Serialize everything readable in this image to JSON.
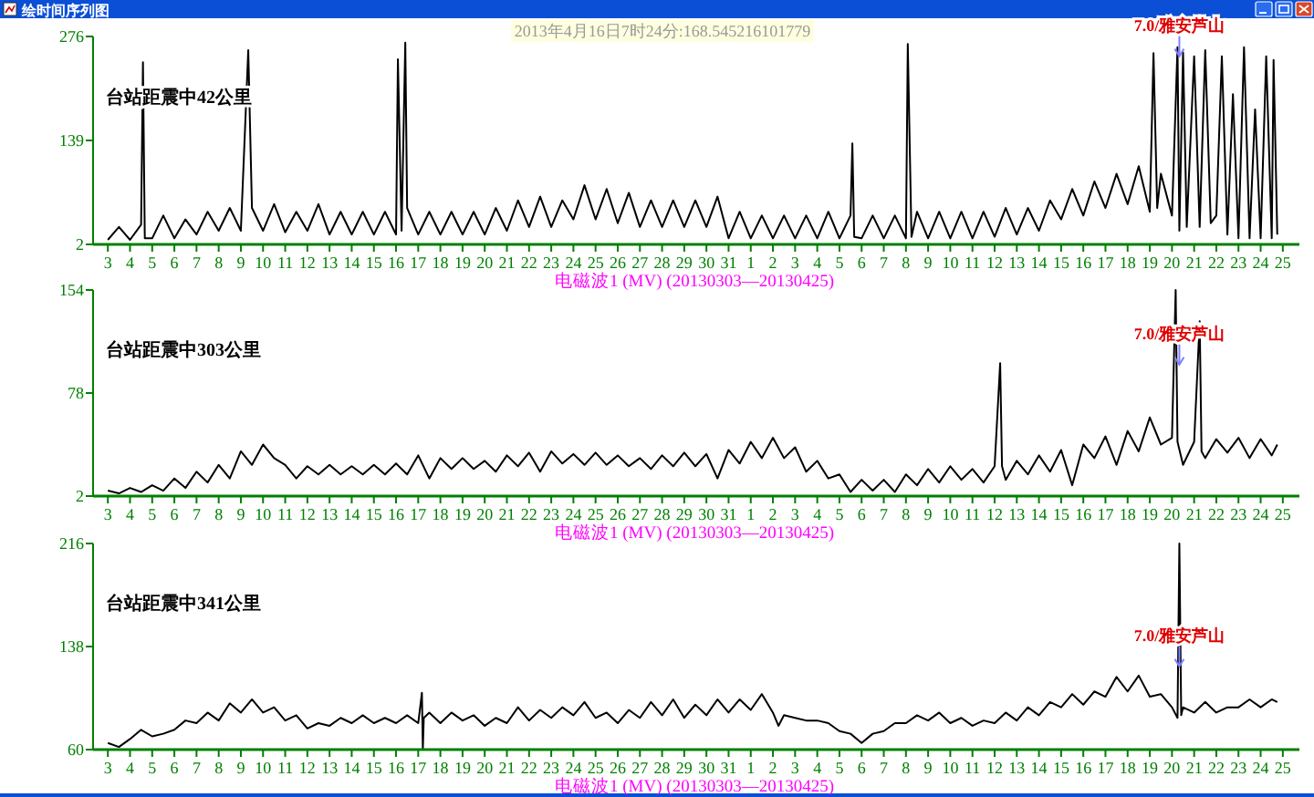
{
  "chart_data": [
    {
      "type": "line",
      "title": "绘时间序列图",
      "subtitle": "2013年4月16日7时24分:168.545216101779",
      "xlabel": "电磁波1 (MV) (20130303—20130425)",
      "annotations": [
        "台站距震中42公里",
        {
          "text": "7.0/雅安芦山",
          "x": "2013-04-20T08:00",
          "y": 250
        }
      ],
      "xlim": [
        "2013-03-02T08:00",
        "2013-04-25T14:00"
      ],
      "ylim": [
        2,
        276
      ],
      "yticks": [
        2,
        139,
        276
      ],
      "xticks": [
        {
          "value": "2013-03-03",
          "label": "3"
        },
        {
          "value": "2013-03-04",
          "label": "4"
        },
        {
          "value": "2013-03-05",
          "label": "5"
        },
        {
          "value": "2013-03-06",
          "label": "6"
        },
        {
          "value": "2013-03-07",
          "label": "7"
        },
        {
          "value": "2013-03-08",
          "label": "8"
        },
        {
          "value": "2013-03-09",
          "label": "9"
        },
        {
          "value": "2013-03-10",
          "label": "10"
        },
        {
          "value": "2013-03-11",
          "label": "11"
        },
        {
          "value": "2013-03-12",
          "label": "12"
        },
        {
          "value": "2013-03-13",
          "label": "13"
        },
        {
          "value": "2013-03-14",
          "label": "14"
        },
        {
          "value": "2013-03-15",
          "label": "15"
        },
        {
          "value": "2013-03-16",
          "label": "16"
        },
        {
          "value": "2013-03-17",
          "label": "17"
        },
        {
          "value": "2013-03-18",
          "label": "18"
        },
        {
          "value": "2013-03-19",
          "label": "19"
        },
        {
          "value": "2013-03-20",
          "label": "20"
        },
        {
          "value": "2013-03-21",
          "label": "21"
        },
        {
          "value": "2013-03-22",
          "label": "22"
        },
        {
          "value": "2013-03-23",
          "label": "23"
        },
        {
          "value": "2013-03-24",
          "label": "24"
        },
        {
          "value": "2013-03-25",
          "label": "25"
        },
        {
          "value": "2013-03-26",
          "label": "26"
        },
        {
          "value": "2013-03-27",
          "label": "27"
        },
        {
          "value": "2013-03-28",
          "label": "28"
        },
        {
          "value": "2013-03-29",
          "label": "29"
        },
        {
          "value": "2013-03-30",
          "label": "30"
        },
        {
          "value": "2013-03-31",
          "label": "31"
        },
        {
          "value": "2013-04-01",
          "label": "1"
        },
        {
          "value": "2013-04-02",
          "label": "2"
        },
        {
          "value": "2013-04-03",
          "label": "3"
        },
        {
          "value": "2013-04-04",
          "label": "4"
        },
        {
          "value": "2013-04-05",
          "label": "5"
        },
        {
          "value": "2013-04-06",
          "label": "6"
        },
        {
          "value": "2013-04-07",
          "label": "7"
        },
        {
          "value": "2013-04-08",
          "label": "8"
        },
        {
          "value": "2013-04-09",
          "label": "9"
        },
        {
          "value": "2013-04-10",
          "label": "10"
        },
        {
          "value": "2013-04-11",
          "label": "11"
        },
        {
          "value": "2013-04-12",
          "label": "12"
        },
        {
          "value": "2013-04-13",
          "label": "13"
        },
        {
          "value": "2013-04-14",
          "label": "14"
        },
        {
          "value": "2013-04-15",
          "label": "15"
        },
        {
          "value": "2013-04-16",
          "label": "16"
        },
        {
          "value": "2013-04-17",
          "label": "17"
        },
        {
          "value": "2013-04-18",
          "label": "18"
        },
        {
          "value": "2013-04-19",
          "label": "19"
        },
        {
          "value": "2013-04-20",
          "label": "20"
        },
        {
          "value": "2013-04-21",
          "label": "21"
        },
        {
          "value": "2013-04-22",
          "label": "22"
        },
        {
          "value": "2013-04-23",
          "label": "23"
        },
        {
          "value": "2013-04-24",
          "label": "24"
        },
        {
          "value": "2013-04-25",
          "label": "25"
        }
      ],
      "x": [
        "2013-03-03T00:00",
        "2013-03-03T12:00",
        "2013-03-04T00:00",
        "2013-03-04T12:00",
        "2013-03-04T14:00",
        "2013-03-04T16:00",
        "2013-03-05T00:00",
        "2013-03-05T12:00",
        "2013-03-06T00:00",
        "2013-03-06T12:00",
        "2013-03-07T00:00",
        "2013-03-07T12:00",
        "2013-03-08T00:00",
        "2013-03-08T12:00",
        "2013-03-09T00:00",
        "2013-03-09T08:00",
        "2013-03-09T12:00",
        "2013-03-10T00:00",
        "2013-03-10T12:00",
        "2013-03-11T00:00",
        "2013-03-11T12:00",
        "2013-03-12T00:00",
        "2013-03-12T12:00",
        "2013-03-13T00:00",
        "2013-03-13T12:00",
        "2013-03-14T00:00",
        "2013-03-14T12:00",
        "2013-03-15T00:00",
        "2013-03-15T12:00",
        "2013-03-16T00:00",
        "2013-03-16T02:00",
        "2013-03-16T06:00",
        "2013-03-16T10:00",
        "2013-03-16T12:00",
        "2013-03-17T00:00",
        "2013-03-17T12:00",
        "2013-03-18T00:00",
        "2013-03-18T12:00",
        "2013-03-19T00:00",
        "2013-03-19T12:00",
        "2013-03-20T00:00",
        "2013-03-20T12:00",
        "2013-03-21T00:00",
        "2013-03-21T12:00",
        "2013-03-22T00:00",
        "2013-03-22T12:00",
        "2013-03-23T00:00",
        "2013-03-23T12:00",
        "2013-03-24T00:00",
        "2013-03-24T12:00",
        "2013-03-25T00:00",
        "2013-03-25T12:00",
        "2013-03-26T00:00",
        "2013-03-26T12:00",
        "2013-03-27T00:00",
        "2013-03-27T12:00",
        "2013-03-28T00:00",
        "2013-03-28T12:00",
        "2013-03-29T00:00",
        "2013-03-29T12:00",
        "2013-03-30T00:00",
        "2013-03-30T12:00",
        "2013-03-31T00:00",
        "2013-03-31T12:00",
        "2013-04-01T00:00",
        "2013-04-01T12:00",
        "2013-04-02T00:00",
        "2013-04-02T12:00",
        "2013-04-03T00:00",
        "2013-04-03T12:00",
        "2013-04-04T00:00",
        "2013-04-04T12:00",
        "2013-04-05T00:00",
        "2013-04-05T12:00",
        "2013-04-05T14:00",
        "2013-04-05T16:00",
        "2013-04-06T00:00",
        "2013-04-06T12:00",
        "2013-04-07T00:00",
        "2013-04-07T12:00",
        "2013-04-08T00:00",
        "2013-04-08T02:00",
        "2013-04-08T06:00",
        "2013-04-08T12:00",
        "2013-04-09T00:00",
        "2013-04-09T12:00",
        "2013-04-10T00:00",
        "2013-04-10T12:00",
        "2013-04-11T00:00",
        "2013-04-11T12:00",
        "2013-04-12T00:00",
        "2013-04-12T12:00",
        "2013-04-13T00:00",
        "2013-04-13T12:00",
        "2013-04-14T00:00",
        "2013-04-14T12:00",
        "2013-04-15T00:00",
        "2013-04-15T12:00",
        "2013-04-16T00:00",
        "2013-04-16T12:00",
        "2013-04-17T00:00",
        "2013-04-17T12:00",
        "2013-04-18T00:00",
        "2013-04-18T12:00",
        "2013-04-19T00:00",
        "2013-04-19T04:00",
        "2013-04-19T08:00",
        "2013-04-19T12:00",
        "2013-04-20T00:00",
        "2013-04-20T06:00",
        "2013-04-20T08:00",
        "2013-04-20T12:00",
        "2013-04-20T16:00",
        "2013-04-21T00:00",
        "2013-04-21T06:00",
        "2013-04-21T12:00",
        "2013-04-21T18:00",
        "2013-04-22T00:00",
        "2013-04-22T06:00",
        "2013-04-22T12:00",
        "2013-04-22T18:00",
        "2013-04-23T00:00",
        "2013-04-23T06:00",
        "2013-04-23T12:00",
        "2013-04-23T18:00",
        "2013-04-24T00:00",
        "2013-04-24T06:00",
        "2013-04-24T12:00",
        "2013-04-24T14:00",
        "2013-04-24T18:00"
      ],
      "series": [
        {
          "color": "#000000",
          "values": [
            8,
            25,
            8,
            28,
            242,
            10,
            10,
            40,
            10,
            35,
            15,
            45,
            20,
            50,
            20,
            258,
            50,
            20,
            55,
            18,
            45,
            20,
            55,
            15,
            45,
            15,
            45,
            15,
            45,
            15,
            246,
            20,
            268,
            50,
            15,
            45,
            15,
            45,
            15,
            45,
            15,
            50,
            20,
            60,
            25,
            65,
            25,
            60,
            35,
            80,
            35,
            75,
            30,
            70,
            25,
            60,
            25,
            60,
            25,
            60,
            25,
            65,
            10,
            45,
            10,
            40,
            10,
            40,
            10,
            40,
            10,
            45,
            10,
            40,
            135,
            12,
            10,
            40,
            10,
            40,
            10,
            266,
            12,
            45,
            10,
            45,
            10,
            45,
            10,
            45,
            12,
            50,
            15,
            50,
            20,
            60,
            35,
            75,
            40,
            85,
            50,
            95,
            55,
            105,
            45,
            254,
            50,
            95,
            40,
            262,
            20,
            255,
            25,
            250,
            25,
            258,
            30,
            40,
            250,
            15,
            200,
            10,
            262,
            10,
            180,
            10,
            250,
            10,
            245,
            15
          ]
        }
      ]
    },
    {
      "type": "line",
      "xlabel": "电磁波1 (MV) (20130303—20130425)",
      "annotations": [
        "台站距震中303公里",
        {
          "text": "7.0/雅安芦山",
          "x": "2013-04-20T08:00",
          "y": 99
        }
      ],
      "xlim": [
        "2013-03-02T08:00",
        "2013-04-25T14:00"
      ],
      "ylim": [
        2,
        154
      ],
      "yticks": [
        2,
        78,
        154
      ],
      "xticks": [
        {
          "value": "2013-03-03",
          "label": "3"
        },
        {
          "value": "2013-03-04",
          "label": "4"
        },
        {
          "value": "2013-03-05",
          "label": "5"
        },
        {
          "value": "2013-03-06",
          "label": "6"
        },
        {
          "value": "2013-03-07",
          "label": "7"
        },
        {
          "value": "2013-03-08",
          "label": "8"
        },
        {
          "value": "2013-03-09",
          "label": "9"
        },
        {
          "value": "2013-03-10",
          "label": "10"
        },
        {
          "value": "2013-03-11",
          "label": "11"
        },
        {
          "value": "2013-03-12",
          "label": "12"
        },
        {
          "value": "2013-03-13",
          "label": "13"
        },
        {
          "value": "2013-03-14",
          "label": "14"
        },
        {
          "value": "2013-03-15",
          "label": "15"
        },
        {
          "value": "2013-03-16",
          "label": "16"
        },
        {
          "value": "2013-03-17",
          "label": "17"
        },
        {
          "value": "2013-03-18",
          "label": "18"
        },
        {
          "value": "2013-03-19",
          "label": "19"
        },
        {
          "value": "2013-03-20",
          "label": "20"
        },
        {
          "value": "2013-03-21",
          "label": "21"
        },
        {
          "value": "2013-03-22",
          "label": "22"
        },
        {
          "value": "2013-03-23",
          "label": "23"
        },
        {
          "value": "2013-03-24",
          "label": "24"
        },
        {
          "value": "2013-03-25",
          "label": "25"
        },
        {
          "value": "2013-03-26",
          "label": "26"
        },
        {
          "value": "2013-03-27",
          "label": "27"
        },
        {
          "value": "2013-03-28",
          "label": "28"
        },
        {
          "value": "2013-03-29",
          "label": "29"
        },
        {
          "value": "2013-03-30",
          "label": "30"
        },
        {
          "value": "2013-03-31",
          "label": "31"
        },
        {
          "value": "2013-04-01",
          "label": "1"
        },
        {
          "value": "2013-04-02",
          "label": "2"
        },
        {
          "value": "2013-04-03",
          "label": "3"
        },
        {
          "value": "2013-04-04",
          "label": "4"
        },
        {
          "value": "2013-04-05",
          "label": "5"
        },
        {
          "value": "2013-04-06",
          "label": "6"
        },
        {
          "value": "2013-04-07",
          "label": "7"
        },
        {
          "value": "2013-04-08",
          "label": "8"
        },
        {
          "value": "2013-04-09",
          "label": "9"
        },
        {
          "value": "2013-04-10",
          "label": "10"
        },
        {
          "value": "2013-04-11",
          "label": "11"
        },
        {
          "value": "2013-04-12",
          "label": "12"
        },
        {
          "value": "2013-04-13",
          "label": "13"
        },
        {
          "value": "2013-04-14",
          "label": "14"
        },
        {
          "value": "2013-04-15",
          "label": "15"
        },
        {
          "value": "2013-04-16",
          "label": "16"
        },
        {
          "value": "2013-04-17",
          "label": "17"
        },
        {
          "value": "2013-04-18",
          "label": "18"
        },
        {
          "value": "2013-04-19",
          "label": "19"
        },
        {
          "value": "2013-04-20",
          "label": "20"
        },
        {
          "value": "2013-04-21",
          "label": "21"
        },
        {
          "value": "2013-04-22",
          "label": "22"
        },
        {
          "value": "2013-04-23",
          "label": "23"
        },
        {
          "value": "2013-04-24",
          "label": "24"
        },
        {
          "value": "2013-04-25",
          "label": "25"
        }
      ],
      "x": [
        "2013-03-03T00:00",
        "2013-03-03T12:00",
        "2013-03-04T00:00",
        "2013-03-04T12:00",
        "2013-03-05T00:00",
        "2013-03-05T12:00",
        "2013-03-06T00:00",
        "2013-03-06T12:00",
        "2013-03-07T00:00",
        "2013-03-07T12:00",
        "2013-03-08T00:00",
        "2013-03-08T12:00",
        "2013-03-09T00:00",
        "2013-03-09T12:00",
        "2013-03-10T00:00",
        "2013-03-10T12:00",
        "2013-03-11T00:00",
        "2013-03-11T12:00",
        "2013-03-12T00:00",
        "2013-03-12T12:00",
        "2013-03-13T00:00",
        "2013-03-13T12:00",
        "2013-03-14T00:00",
        "2013-03-14T12:00",
        "2013-03-15T00:00",
        "2013-03-15T12:00",
        "2013-03-16T00:00",
        "2013-03-16T12:00",
        "2013-03-17T00:00",
        "2013-03-17T12:00",
        "2013-03-18T00:00",
        "2013-03-18T12:00",
        "2013-03-19T00:00",
        "2013-03-19T12:00",
        "2013-03-20T00:00",
        "2013-03-20T12:00",
        "2013-03-21T00:00",
        "2013-03-21T12:00",
        "2013-03-22T00:00",
        "2013-03-22T12:00",
        "2013-03-23T00:00",
        "2013-03-23T12:00",
        "2013-03-24T00:00",
        "2013-03-24T12:00",
        "2013-03-25T00:00",
        "2013-03-25T12:00",
        "2013-03-26T00:00",
        "2013-03-26T12:00",
        "2013-03-27T00:00",
        "2013-03-27T12:00",
        "2013-03-28T00:00",
        "2013-03-28T12:00",
        "2013-03-29T00:00",
        "2013-03-29T12:00",
        "2013-03-30T00:00",
        "2013-03-30T12:00",
        "2013-03-31T00:00",
        "2013-03-31T12:00",
        "2013-04-01T00:00",
        "2013-04-01T12:00",
        "2013-04-02T00:00",
        "2013-04-02T12:00",
        "2013-04-03T00:00",
        "2013-04-03T12:00",
        "2013-04-04T00:00",
        "2013-04-04T12:00",
        "2013-04-05T00:00",
        "2013-04-05T12:00",
        "2013-04-06T00:00",
        "2013-04-06T12:00",
        "2013-04-07T00:00",
        "2013-04-07T12:00",
        "2013-04-08T00:00",
        "2013-04-08T12:00",
        "2013-04-09T00:00",
        "2013-04-09T12:00",
        "2013-04-10T00:00",
        "2013-04-10T12:00",
        "2013-04-11T00:00",
        "2013-04-11T12:00",
        "2013-04-12T00:00",
        "2013-04-12T06:00",
        "2013-04-12T08:00",
        "2013-04-12T12:00",
        "2013-04-13T00:00",
        "2013-04-13T12:00",
        "2013-04-14T00:00",
        "2013-04-14T12:00",
        "2013-04-15T00:00",
        "2013-04-15T12:00",
        "2013-04-16T00:00",
        "2013-04-16T12:00",
        "2013-04-17T00:00",
        "2013-04-17T12:00",
        "2013-04-18T00:00",
        "2013-04-18T12:00",
        "2013-04-19T00:00",
        "2013-04-19T12:00",
        "2013-04-20T00:00",
        "2013-04-20T04:00",
        "2013-04-20T06:00",
        "2013-04-20T12:00",
        "2013-04-21T00:00",
        "2013-04-21T06:00",
        "2013-04-21T08:00",
        "2013-04-21T12:00",
        "2013-04-22T00:00",
        "2013-04-22T12:00",
        "2013-04-23T00:00",
        "2013-04-23T12:00",
        "2013-04-24T00:00",
        "2013-04-24T12:00",
        "2013-04-24T18:00"
      ],
      "series": [
        {
          "color": "#000000",
          "values": [
            6,
            4,
            8,
            5,
            10,
            6,
            15,
            8,
            20,
            12,
            25,
            15,
            35,
            25,
            40,
            30,
            25,
            15,
            24,
            18,
            25,
            18,
            24,
            18,
            25,
            18,
            26,
            18,
            32,
            15,
            30,
            22,
            30,
            22,
            28,
            20,
            32,
            24,
            34,
            20,
            35,
            26,
            33,
            25,
            34,
            25,
            32,
            24,
            30,
            22,
            32,
            24,
            34,
            24,
            33,
            15,
            36,
            26,
            42,
            30,
            45,
            30,
            38,
            20,
            28,
            15,
            18,
            5,
            14,
            6,
            14,
            5,
            18,
            10,
            22,
            12,
            24,
            14,
            22,
            12,
            24,
            100,
            24,
            14,
            28,
            18,
            32,
            20,
            36,
            10,
            40,
            30,
            46,
            25,
            50,
            35,
            60,
            40,
            45,
            154,
            42,
            25,
            42,
            131,
            35,
            30,
            44,
            34,
            45,
            30,
            44,
            32,
            40
          ]
        }
      ]
    },
    {
      "type": "line",
      "xlabel": "电磁波1 (MV) (20130303—20130425)",
      "annotations": [
        "台站距震中341公里",
        {
          "text": "7.0/雅安芦山",
          "x": "2013-04-20T08:00",
          "y": 123
        }
      ],
      "xlim": [
        "2013-03-02T08:00",
        "2013-04-25T14:00"
      ],
      "ylim": [
        60,
        216
      ],
      "yticks": [
        60,
        138,
        216
      ],
      "xticks": [
        {
          "value": "2013-03-03",
          "label": "3"
        },
        {
          "value": "2013-03-04",
          "label": "4"
        },
        {
          "value": "2013-03-05",
          "label": "5"
        },
        {
          "value": "2013-03-06",
          "label": "6"
        },
        {
          "value": "2013-03-07",
          "label": "7"
        },
        {
          "value": "2013-03-08",
          "label": "8"
        },
        {
          "value": "2013-03-09",
          "label": "9"
        },
        {
          "value": "2013-03-10",
          "label": "10"
        },
        {
          "value": "2013-03-11",
          "label": "11"
        },
        {
          "value": "2013-03-12",
          "label": "12"
        },
        {
          "value": "2013-03-13",
          "label": "13"
        },
        {
          "value": "2013-03-14",
          "label": "14"
        },
        {
          "value": "2013-03-15",
          "label": "15"
        },
        {
          "value": "2013-03-16",
          "label": "16"
        },
        {
          "value": "2013-03-17",
          "label": "17"
        },
        {
          "value": "2013-03-18",
          "label": "18"
        },
        {
          "value": "2013-03-19",
          "label": "19"
        },
        {
          "value": "2013-03-20",
          "label": "20"
        },
        {
          "value": "2013-03-21",
          "label": "21"
        },
        {
          "value": "2013-03-22",
          "label": "22"
        },
        {
          "value": "2013-03-23",
          "label": "23"
        },
        {
          "value": "2013-03-24",
          "label": "24"
        },
        {
          "value": "2013-03-25",
          "label": "25"
        },
        {
          "value": "2013-03-26",
          "label": "26"
        },
        {
          "value": "2013-03-27",
          "label": "27"
        },
        {
          "value": "2013-03-28",
          "label": "28"
        },
        {
          "value": "2013-03-29",
          "label": "29"
        },
        {
          "value": "2013-03-30",
          "label": "30"
        },
        {
          "value": "2013-03-31",
          "label": "31"
        },
        {
          "value": "2013-04-01",
          "label": "1"
        },
        {
          "value": "2013-04-02",
          "label": "2"
        },
        {
          "value": "2013-04-03",
          "label": "3"
        },
        {
          "value": "2013-04-04",
          "label": "4"
        },
        {
          "value": "2013-04-05",
          "label": "5"
        },
        {
          "value": "2013-04-06",
          "label": "6"
        },
        {
          "value": "2013-04-07",
          "label": "7"
        },
        {
          "value": "2013-04-08",
          "label": "8"
        },
        {
          "value": "2013-04-09",
          "label": "9"
        },
        {
          "value": "2013-04-10",
          "label": "10"
        },
        {
          "value": "2013-04-11",
          "label": "11"
        },
        {
          "value": "2013-04-12",
          "label": "12"
        },
        {
          "value": "2013-04-13",
          "label": "13"
        },
        {
          "value": "2013-04-14",
          "label": "14"
        },
        {
          "value": "2013-04-15",
          "label": "15"
        },
        {
          "value": "2013-04-16",
          "label": "16"
        },
        {
          "value": "2013-04-17",
          "label": "17"
        },
        {
          "value": "2013-04-18",
          "label": "18"
        },
        {
          "value": "2013-04-19",
          "label": "19"
        },
        {
          "value": "2013-04-20",
          "label": "20"
        },
        {
          "value": "2013-04-21",
          "label": "21"
        },
        {
          "value": "2013-04-22",
          "label": "22"
        },
        {
          "value": "2013-04-23",
          "label": "23"
        },
        {
          "value": "2013-04-24",
          "label": "24"
        },
        {
          "value": "2013-04-25",
          "label": "25"
        }
      ],
      "x": [
        "2013-03-03T00:00",
        "2013-03-03T12:00",
        "2013-03-04T00:00",
        "2013-03-04T12:00",
        "2013-03-05T00:00",
        "2013-03-05T12:00",
        "2013-03-06T00:00",
        "2013-03-06T12:00",
        "2013-03-07T00:00",
        "2013-03-07T12:00",
        "2013-03-08T00:00",
        "2013-03-08T12:00",
        "2013-03-09T00:00",
        "2013-03-09T12:00",
        "2013-03-10T00:00",
        "2013-03-10T12:00",
        "2013-03-11T00:00",
        "2013-03-11T12:00",
        "2013-03-12T00:00",
        "2013-03-12T12:00",
        "2013-03-13T00:00",
        "2013-03-13T12:00",
        "2013-03-14T00:00",
        "2013-03-14T12:00",
        "2013-03-15T00:00",
        "2013-03-15T12:00",
        "2013-03-16T00:00",
        "2013-03-16T12:00",
        "2013-03-17T00:00",
        "2013-03-17T04:00",
        "2013-03-17T05:00",
        "2013-03-17T06:00",
        "2013-03-17T12:00",
        "2013-03-18T00:00",
        "2013-03-18T12:00",
        "2013-03-19T00:00",
        "2013-03-19T12:00",
        "2013-03-20T00:00",
        "2013-03-20T12:00",
        "2013-03-21T00:00",
        "2013-03-21T12:00",
        "2013-03-22T00:00",
        "2013-03-22T12:00",
        "2013-03-23T00:00",
        "2013-03-23T12:00",
        "2013-03-24T00:00",
        "2013-03-24T12:00",
        "2013-03-25T00:00",
        "2013-03-25T12:00",
        "2013-03-26T00:00",
        "2013-03-26T12:00",
        "2013-03-27T00:00",
        "2013-03-27T12:00",
        "2013-03-28T00:00",
        "2013-03-28T12:00",
        "2013-03-29T00:00",
        "2013-03-29T12:00",
        "2013-03-30T00:00",
        "2013-03-30T12:00",
        "2013-03-31T00:00",
        "2013-03-31T12:00",
        "2013-04-01T00:00",
        "2013-04-01T12:00",
        "2013-04-02T00:00",
        "2013-04-02T06:00",
        "2013-04-02T12:00",
        "2013-04-03T00:00",
        "2013-04-03T12:00",
        "2013-04-04T00:00",
        "2013-04-04T12:00",
        "2013-04-05T00:00",
        "2013-04-05T12:00",
        "2013-04-06T00:00",
        "2013-04-06T12:00",
        "2013-04-07T00:00",
        "2013-04-07T12:00",
        "2013-04-08T00:00",
        "2013-04-08T12:00",
        "2013-04-09T00:00",
        "2013-04-09T12:00",
        "2013-04-10T00:00",
        "2013-04-10T12:00",
        "2013-04-11T00:00",
        "2013-04-11T12:00",
        "2013-04-12T00:00",
        "2013-04-12T12:00",
        "2013-04-13T00:00",
        "2013-04-13T12:00",
        "2013-04-14T00:00",
        "2013-04-14T12:00",
        "2013-04-15T00:00",
        "2013-04-15T12:00",
        "2013-04-16T00:00",
        "2013-04-16T12:00",
        "2013-04-17T00:00",
        "2013-04-17T12:00",
        "2013-04-18T00:00",
        "2013-04-18T12:00",
        "2013-04-19T00:00",
        "2013-04-19T12:00",
        "2013-04-20T00:00",
        "2013-04-20T06:00",
        "2013-04-20T08:00",
        "2013-04-20T10:00",
        "2013-04-20T12:00",
        "2013-04-21T00:00",
        "2013-04-21T12:00",
        "2013-04-22T00:00",
        "2013-04-22T12:00",
        "2013-04-23T00:00",
        "2013-04-23T12:00",
        "2013-04-24T00:00",
        "2013-04-24T12:00",
        "2013-04-24T18:00"
      ],
      "series": [
        {
          "color": "#000000",
          "values": [
            65,
            62,
            68,
            75,
            70,
            72,
            75,
            82,
            80,
            88,
            82,
            95,
            88,
            98,
            88,
            92,
            82,
            86,
            76,
            80,
            78,
            84,
            80,
            86,
            80,
            84,
            80,
            86,
            80,
            103,
            60,
            84,
            88,
            80,
            88,
            82,
            86,
            78,
            84,
            80,
            92,
            82,
            90,
            84,
            92,
            86,
            96,
            84,
            88,
            80,
            90,
            84,
            96,
            86,
            98,
            84,
            94,
            86,
            98,
            88,
            98,
            90,
            102,
            88,
            78,
            86,
            84,
            82,
            82,
            80,
            74,
            72,
            65,
            72,
            74,
            80,
            80,
            86,
            82,
            88,
            80,
            84,
            78,
            82,
            80,
            88,
            82,
            92,
            86,
            96,
            92,
            102,
            94,
            104,
            100,
            115,
            104,
            116,
            100,
            102,
            92,
            84,
            216,
            86,
            92,
            88,
            96,
            88,
            92,
            92,
            98,
            92,
            98,
            96
          ]
        }
      ]
    }
  ]
}
